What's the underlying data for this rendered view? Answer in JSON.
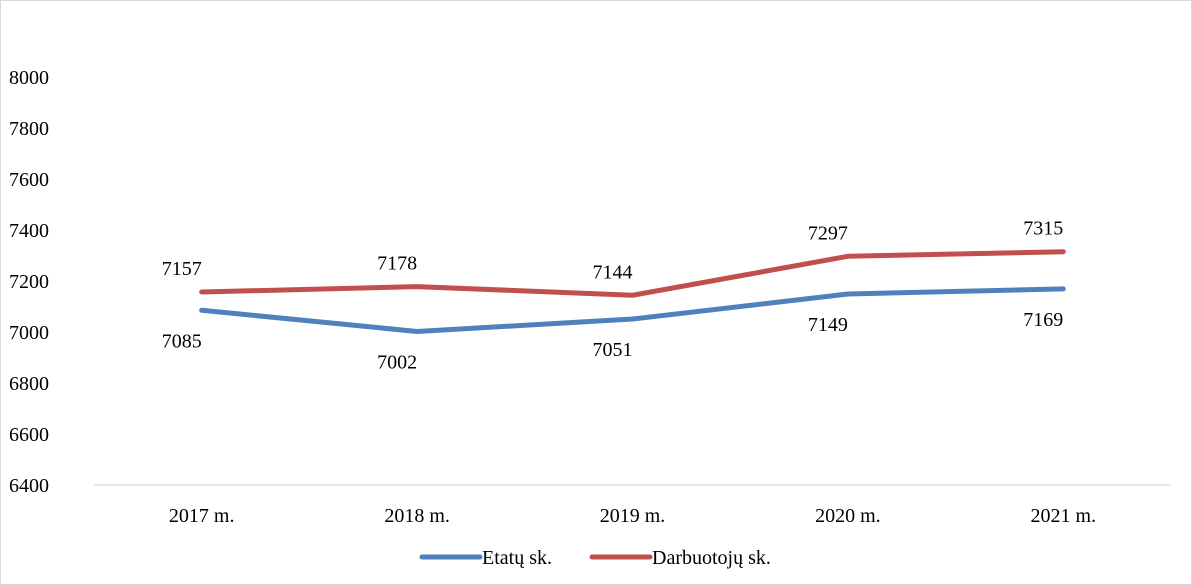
{
  "chart_data": {
    "type": "line",
    "title": "",
    "xlabel": "",
    "ylabel": "",
    "categories": [
      "2017 m.",
      "2018 m.",
      "2019 m.",
      "2020 m.",
      "2021 m."
    ],
    "ylim": [
      6400,
      8000
    ],
    "yticks": [
      6400,
      6600,
      6800,
      7000,
      7200,
      7400,
      7600,
      7800,
      8000
    ],
    "grid": false,
    "legend_position": "bottom",
    "series": [
      {
        "name": "Etatų sk.",
        "values": [
          7085,
          7002,
          7051,
          7149,
          7169
        ],
        "color": "#4f81bd",
        "label_position": "below"
      },
      {
        "name": "Darbuotojų sk.",
        "values": [
          7157,
          7178,
          7144,
          7297,
          7315
        ],
        "color": "#c0504d",
        "label_position": "above"
      }
    ]
  }
}
